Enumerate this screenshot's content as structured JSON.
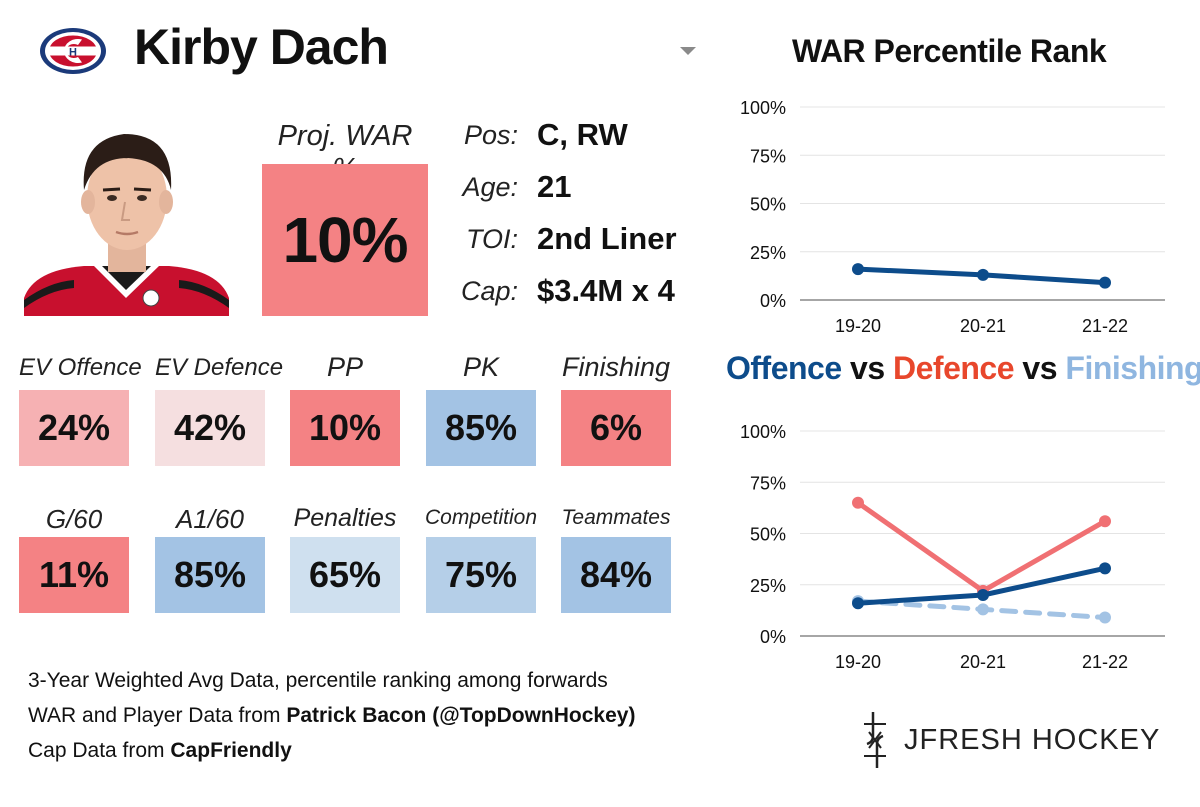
{
  "player": {
    "name": "Kirby Dach",
    "team": "Montreal Canadiens"
  },
  "projection": {
    "label": "Proj. WAR %",
    "value": "10%",
    "percentile": 10,
    "color": "#f48284"
  },
  "info": [
    {
      "label": "Pos:",
      "value": "C, RW"
    },
    {
      "label": "Age:",
      "value": "21"
    },
    {
      "label": "TOI:",
      "value": "2nd Liner"
    },
    {
      "label": "Cap:",
      "value": "$3.4M x 4"
    }
  ],
  "tiles_row1": [
    {
      "label": "EV Offence",
      "value": "24%",
      "color": "#f6b1b3"
    },
    {
      "label": "EV Defence",
      "value": "42%",
      "color": "#f5dfe0"
    },
    {
      "label": "PP",
      "value": "10%",
      "color": "#f48284"
    },
    {
      "label": "PK",
      "value": "85%",
      "color": "#a3c3e4"
    },
    {
      "label": "Finishing",
      "value": "6%",
      "color": "#f48284"
    }
  ],
  "tiles_row2": [
    {
      "label": "G/60",
      "value": "11%",
      "color": "#f48284"
    },
    {
      "label": "A1/60",
      "value": "85%",
      "color": "#a3c3e4"
    },
    {
      "label": "Penalties",
      "value": "65%",
      "color": "#cfe0ef"
    },
    {
      "label": "Competition",
      "value": "75%",
      "color": "#b5cfe8"
    },
    {
      "label": "Teammates",
      "value": "84%",
      "color": "#a3c3e4"
    }
  ],
  "credits": {
    "line1": "3-Year Weighted Avg Data, percentile ranking among forwards",
    "line2_prefix": "WAR and Player Data from ",
    "line2_bold": "Patrick Bacon (@TopDownHockey)",
    "line3_prefix": "Cap Data from ",
    "line3_bold": "CapFriendly"
  },
  "brand": {
    "text": "JFRESH HOCKEY"
  },
  "chart_titles": {
    "war": "WAR Percentile Rank",
    "compare_offence": "Offence",
    "compare_vs1": " vs ",
    "compare_defence": "Defence",
    "compare_vs2": " vs ",
    "compare_finishing": "Finishing"
  },
  "colors": {
    "offence": "#0d4c8b",
    "defence": "#f07073",
    "finishing": "#a3c3e4",
    "defence_title": "#e8472c",
    "finishing_title": "#8fb6e0"
  },
  "chart_data": [
    {
      "type": "line",
      "title": "WAR Percentile Rank",
      "categories": [
        "19-20",
        "20-21",
        "21-22"
      ],
      "series": [
        {
          "name": "WAR",
          "values": [
            16,
            13,
            9
          ],
          "color": "#0d4c8b",
          "dashed": false
        }
      ],
      "ylim": [
        0,
        100
      ],
      "yticks": [
        0,
        25,
        50,
        75,
        100
      ],
      "ytick_labels": [
        "0%",
        "25%",
        "50%",
        "75%",
        "100%"
      ],
      "grid": true
    },
    {
      "type": "line",
      "title": "Offence vs Defence vs Finishing",
      "categories": [
        "19-20",
        "20-21",
        "21-22"
      ],
      "series": [
        {
          "name": "Finishing",
          "values": [
            17,
            13,
            9
          ],
          "color": "#a3c3e4",
          "dashed": true
        },
        {
          "name": "Defence",
          "values": [
            65,
            22,
            56
          ],
          "color": "#f07073",
          "dashed": false
        },
        {
          "name": "Offence",
          "values": [
            16,
            20,
            33
          ],
          "color": "#0d4c8b",
          "dashed": false
        }
      ],
      "ylim": [
        0,
        100
      ],
      "yticks": [
        0,
        25,
        50,
        75,
        100
      ],
      "ytick_labels": [
        "0%",
        "25%",
        "50%",
        "75%",
        "100%"
      ],
      "grid": true
    }
  ]
}
